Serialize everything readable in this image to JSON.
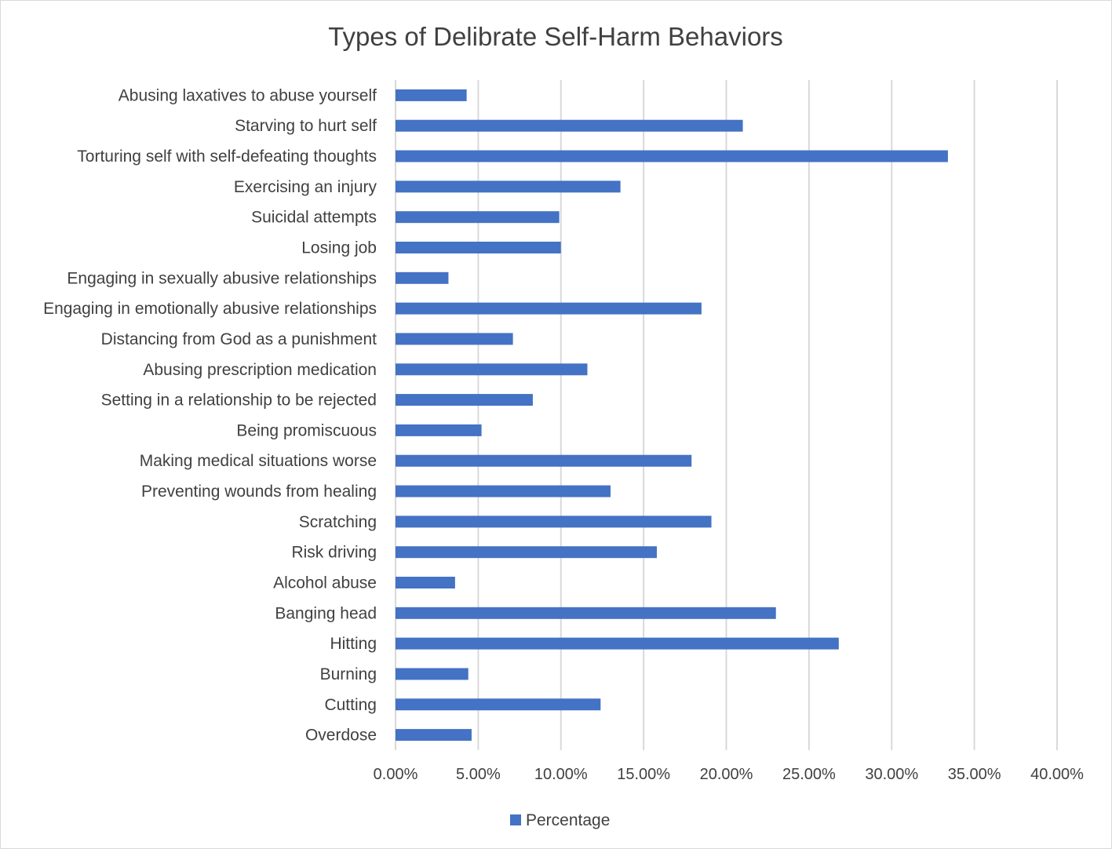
{
  "chart_data": {
    "type": "bar",
    "orientation": "horizontal",
    "title": "Types of Delibrate Self-Harm Behaviors",
    "xlabel": "",
    "ylabel": "",
    "xlim": [
      0,
      0.4
    ],
    "grid": true,
    "legend_position": "bottom",
    "bar_color": "#4472C4",
    "categories": [
      "Abusing laxatives to abuse yourself",
      "Starving to hurt self",
      "Torturing self with self-defeating thoughts",
      "Exercising an injury",
      "Suicidal attempts",
      "Losing job",
      "Engaging in sexually abusive relationships",
      "Engaging in emotionally abusive relationships",
      "Distancing from God as a punishment",
      "Abusing prescription medication",
      "Setting in a relationship to be rejected",
      "Being promiscuous",
      "Making medical situations worse",
      "Preventing wounds from healing",
      "Scratching",
      "Risk driving",
      "Alcohol abuse",
      "Banging head",
      "Hitting",
      "Burning",
      "Cutting",
      "Overdose"
    ],
    "series": [
      {
        "name": "Percentage",
        "values": [
          0.043,
          0.21,
          0.334,
          0.136,
          0.099,
          0.1,
          0.032,
          0.185,
          0.071,
          0.116,
          0.083,
          0.052,
          0.179,
          0.13,
          0.191,
          0.158,
          0.036,
          0.23,
          0.268,
          0.044,
          0.124,
          0.046
        ]
      }
    ],
    "xticks": [
      "0.00%",
      "5.00%",
      "10.00%",
      "15.00%",
      "20.00%",
      "25.00%",
      "30.00%",
      "35.00%",
      "40.00%"
    ]
  }
}
